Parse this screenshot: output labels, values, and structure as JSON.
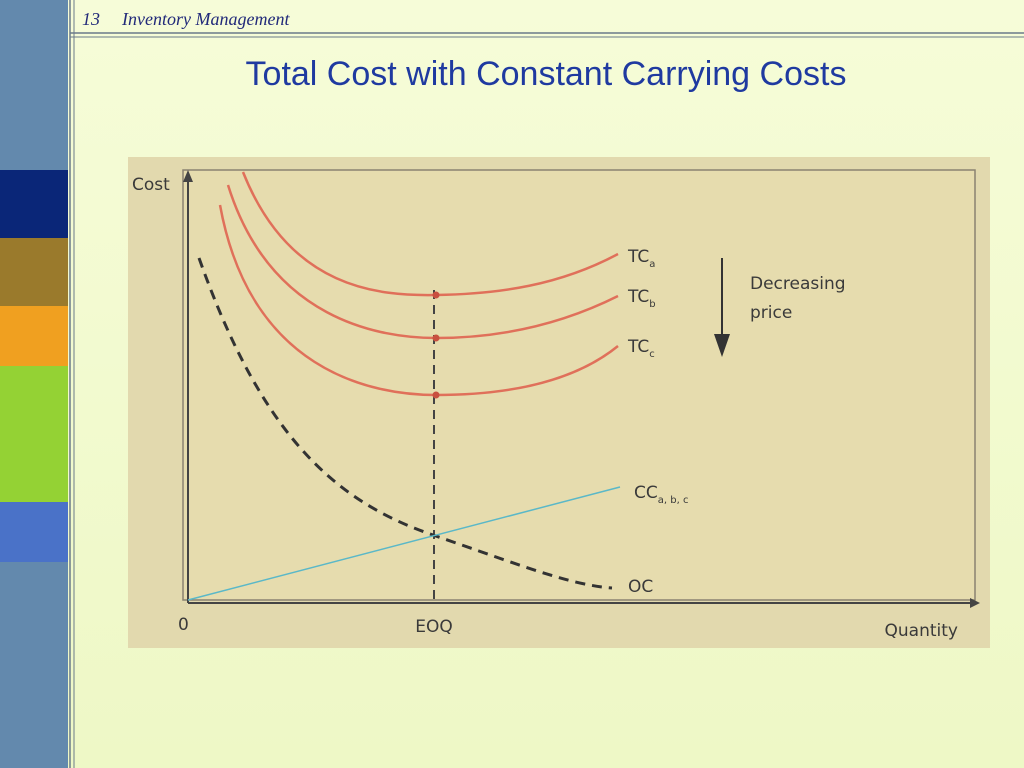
{
  "header": {
    "number": "13",
    "title": "Inventory Management"
  },
  "slide": {
    "title": "Total Cost with Constant Carrying Costs"
  },
  "diagram": {
    "y_axis_label": "Cost",
    "x_axis_label": "Quantity",
    "origin_label": "0",
    "eoq_label": "EOQ",
    "curves": [
      {
        "main": "TC",
        "sub": "a"
      },
      {
        "main": "TC",
        "sub": "b"
      },
      {
        "main": "TC",
        "sub": "c"
      },
      {
        "main": "CC",
        "sub": "a, b, c"
      },
      {
        "main": "OC"
      }
    ],
    "annotation": [
      "Decreasing",
      "price"
    ]
  }
}
